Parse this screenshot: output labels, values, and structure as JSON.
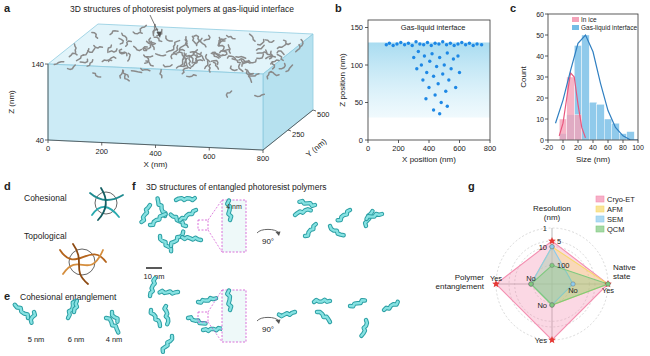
{
  "figure": {
    "panel_a": {
      "letter": "a",
      "title": "3D structures of photoresist polymers at gas-liquid interface",
      "x_label": "X (nm)",
      "y_label": "Y (nm)",
      "z_label": "Z (nm)",
      "xlim": [
        0,
        800
      ],
      "ylim": [
        0,
        500
      ],
      "zlim": [
        40,
        140
      ],
      "xticks": [
        0,
        200,
        400,
        600,
        800
      ],
      "yticks": [
        250,
        500
      ],
      "zticks": [
        40,
        140
      ]
    },
    "panel_d": {
      "letter": "d",
      "labels": [
        "Cohesional",
        "Topological"
      ]
    },
    "panel_e": {
      "letter": "e",
      "title": "Cohesional entanglement",
      "sizes": [
        "5 nm",
        "6 nm",
        "4 nm"
      ]
    },
    "panel_f": {
      "letter": "f",
      "title": "3D structures of entangled photoresist polymers",
      "scale_bar": "10 nm",
      "inset_label": "4 nm",
      "rotation": "90°"
    }
  },
  "chart_data": [
    {
      "letter": "b",
      "type": "scatter",
      "title": "Gas-liquid interface",
      "x_label": "X position (nm)",
      "y_label": "Z position (nm)",
      "x": [
        120,
        140,
        165,
        190,
        215,
        240,
        265,
        290,
        315,
        340,
        365,
        390,
        415,
        440,
        465,
        490,
        515,
        540,
        565,
        590,
        615,
        640,
        665,
        690,
        715,
        745,
        300,
        320,
        330,
        350,
        360,
        370,
        385,
        400,
        405,
        420,
        430,
        440,
        450,
        460,
        470,
        480,
        490,
        500,
        510,
        520,
        530,
        545,
        560,
        575,
        590,
        600,
        430,
        470,
        380,
        520
      ],
      "values": [
        127,
        129,
        126,
        128,
        130,
        127,
        129,
        126,
        131,
        128,
        127,
        130,
        126,
        129,
        128,
        131,
        127,
        129,
        126,
        128,
        130,
        127,
        129,
        126,
        128,
        127,
        110,
        95,
        118,
        100,
        80,
        112,
        90,
        70,
        105,
        115,
        85,
        60,
        98,
        75,
        110,
        50,
        88,
        100,
        65,
        116,
        80,
        95,
        108,
        70,
        112,
        90,
        40,
        35,
        55,
        45
      ],
      "color": "#1e88e5",
      "band": [
        30,
        130
      ],
      "xlim": [
        0,
        800
      ],
      "ylim": [
        0,
        160
      ],
      "xticks": [
        0,
        200,
        400,
        600,
        800
      ],
      "yticks": [
        0,
        50,
        100,
        150
      ]
    },
    {
      "letter": "c",
      "type": "histogram",
      "x_label": "Size (nm)",
      "y_label": "Count",
      "bins": [
        -5,
        5,
        15,
        25,
        35,
        45,
        55,
        65,
        75,
        85,
        95
      ],
      "series": [
        {
          "name": "Gas-liquid interface",
          "type": "bar",
          "color": "#74bde6",
          "values": [
            3,
            12,
            45,
            50,
            18,
            17,
            10,
            8,
            3,
            4
          ]
        },
        {
          "name": "In ice",
          "type": "bar",
          "color": "#f4a3b9",
          "values": [
            10,
            30,
            12,
            0,
            0,
            0,
            0,
            0,
            0,
            0
          ]
        },
        {
          "type": "line",
          "color": "#e8577e",
          "x": [
            -5,
            0,
            5,
            10,
            15,
            20,
            25,
            30
          ],
          "values": [
            2,
            8,
            20,
            32,
            30,
            17,
            6,
            1
          ]
        },
        {
          "type": "line",
          "color": "#2f7fc1",
          "x": [
            -10,
            0,
            10,
            20,
            30,
            40,
            50,
            60,
            70,
            80,
            90,
            100
          ],
          "values": [
            8,
            19,
            33,
            46,
            50,
            42,
            27,
            14,
            6,
            2,
            0,
            0
          ]
        }
      ],
      "xlim": [
        -20,
        100
      ],
      "ylim": [
        0,
        60
      ],
      "xticks": [
        -20,
        0,
        20,
        40,
        60,
        80,
        100
      ],
      "yticks": [
        0,
        10,
        20,
        30,
        40,
        50,
        60
      ],
      "legend": "top-right"
    },
    {
      "letter": "g",
      "type": "radar",
      "axes": [
        {
          "label": [
            "Resolution",
            "(nm)"
          ],
          "log": true,
          "lim": [
            1000,
            1
          ],
          "ticks": [
            1,
            5,
            10,
            100
          ]
        },
        {
          "label": [
            "Native",
            "state"
          ],
          "lim": [
            -0.6,
            1
          ],
          "ticks": [
            {
              "value": 0,
              "label": "No"
            },
            {
              "value": 1,
              "label": "Yes"
            }
          ]
        },
        {
          "lim": [
            -0.6,
            1
          ],
          "ticks": [
            {
              "value": 0,
              "label": "No"
            },
            {
              "value": 1,
              "label": "Yes"
            }
          ]
        },
        {
          "label": [
            "Polymer",
            "entanglement"
          ],
          "lim": [
            -0.6,
            1
          ],
          "ticks": [
            {
              "value": 0,
              "label": "No"
            },
            {
              "value": 1,
              "label": "Yes"
            }
          ]
        }
      ],
      "series": [
        {
          "name": "Cryo-ET",
          "color": "#f48fb1",
          "marker": "star",
          "values": [
            5,
            1,
            1,
            1
          ]
        },
        {
          "name": "AFM",
          "color": "#f7d96b",
          "marker": "circle",
          "values": [
            10,
            1,
            0,
            0
          ]
        },
        {
          "name": "SEM",
          "color": "#8ccbee",
          "marker": "circle",
          "values": [
            10,
            0,
            0,
            0
          ]
        },
        {
          "name": "QCM",
          "color": "#7fc97f",
          "marker": "circle",
          "values": [
            100,
            1,
            0,
            0
          ]
        }
      ],
      "legend": "top-right"
    }
  ]
}
